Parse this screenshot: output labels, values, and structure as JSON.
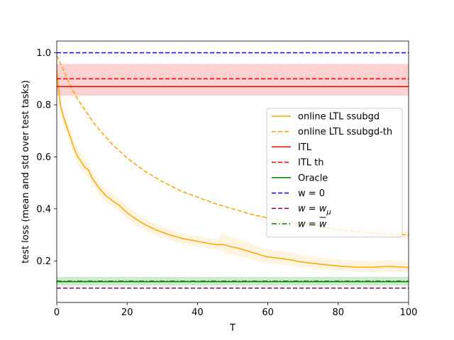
{
  "chart_data": {
    "type": "line",
    "title": "",
    "xlabel": "T",
    "ylabel": "test loss (mean and std over test tasks)",
    "xlim": [
      0,
      100
    ],
    "ylim": [
      0.04,
      1.045
    ],
    "xticks": [
      0,
      20,
      40,
      60,
      80,
      100
    ],
    "yticks": [
      0.2,
      0.4,
      0.6,
      0.8,
      1.0
    ],
    "xtick_labels": [
      "0",
      "20",
      "40",
      "60",
      "80",
      "100"
    ],
    "ytick_labels": [
      "0.2",
      "0.4",
      "0.6",
      "0.8",
      "1.0"
    ],
    "grid": false,
    "legend_position": "center-right",
    "colors": {
      "online": "#ffa500",
      "itl": "#ff0000",
      "oracle": "#008000",
      "zero": "#0000ff",
      "wmu": "#800080",
      "wbar": "#008000"
    },
    "series": [
      {
        "name": "online LTL ssubgd",
        "color": "#ffa500",
        "style": "solid",
        "x": [
          0,
          1,
          2,
          3,
          4,
          5,
          6,
          7,
          8,
          9,
          10,
          12,
          14,
          16,
          18,
          20,
          22,
          25,
          28,
          32,
          36,
          40,
          44,
          46,
          47,
          48,
          50,
          52,
          55,
          58,
          60,
          65,
          70,
          75,
          80,
          85,
          90,
          94,
          97,
          100
        ],
        "y": [
          0.93,
          0.8,
          0.75,
          0.71,
          0.67,
          0.63,
          0.6,
          0.58,
          0.56,
          0.55,
          0.52,
          0.48,
          0.45,
          0.43,
          0.41,
          0.385,
          0.365,
          0.34,
          0.32,
          0.3,
          0.285,
          0.275,
          0.265,
          0.262,
          0.263,
          0.26,
          0.253,
          0.247,
          0.235,
          0.222,
          0.215,
          0.207,
          0.195,
          0.187,
          0.18,
          0.176,
          0.176,
          0.178,
          0.177,
          0.175
        ],
        "std_lower": [
          0.89,
          0.77,
          0.72,
          0.68,
          0.64,
          0.6,
          0.57,
          0.55,
          0.535,
          0.52,
          0.495,
          0.455,
          0.425,
          0.405,
          0.385,
          0.36,
          0.34,
          0.318,
          0.298,
          0.28,
          0.265,
          0.255,
          0.247,
          0.243,
          0.235,
          0.228,
          0.222,
          0.216,
          0.207,
          0.196,
          0.19,
          0.183,
          0.174,
          0.167,
          0.162,
          0.158,
          0.157,
          0.158,
          0.157,
          0.156
        ],
        "std_upper": [
          0.97,
          0.83,
          0.78,
          0.74,
          0.7,
          0.66,
          0.63,
          0.61,
          0.59,
          0.58,
          0.545,
          0.505,
          0.475,
          0.455,
          0.435,
          0.41,
          0.39,
          0.362,
          0.342,
          0.322,
          0.305,
          0.295,
          0.285,
          0.283,
          0.312,
          0.3,
          0.29,
          0.282,
          0.268,
          0.252,
          0.245,
          0.235,
          0.221,
          0.212,
          0.205,
          0.2,
          0.199,
          0.203,
          0.2,
          0.198
        ]
      },
      {
        "name": "online LTL ssubgd-th",
        "color": "#ffa500",
        "style": "dashed",
        "x": [
          0,
          2,
          4,
          6,
          8,
          10,
          12,
          14,
          16,
          18,
          20,
          25,
          30,
          35,
          40,
          45,
          50,
          55,
          60,
          65,
          70,
          75,
          80,
          85,
          90,
          95,
          100
        ],
        "y": [
          0.99,
          0.93,
          0.87,
          0.82,
          0.78,
          0.74,
          0.705,
          0.675,
          0.645,
          0.62,
          0.595,
          0.545,
          0.505,
          0.47,
          0.445,
          0.42,
          0.4,
          0.38,
          0.365,
          0.35,
          0.34,
          0.33,
          0.32,
          0.312,
          0.306,
          0.302,
          0.3
        ],
        "std_lower": [
          0.99,
          0.93,
          0.87,
          0.82,
          0.78,
          0.74,
          0.705,
          0.675,
          0.645,
          0.62,
          0.595,
          0.545,
          0.505,
          0.47,
          0.445,
          0.42,
          0.4,
          0.38,
          0.36,
          0.342,
          0.33,
          0.318,
          0.305,
          0.297,
          0.292,
          0.288,
          0.285
        ],
        "std_upper": [
          0.99,
          0.93,
          0.87,
          0.82,
          0.78,
          0.74,
          0.705,
          0.675,
          0.645,
          0.62,
          0.595,
          0.545,
          0.505,
          0.47,
          0.445,
          0.42,
          0.4,
          0.38,
          0.368,
          0.356,
          0.35,
          0.343,
          0.335,
          0.327,
          0.32,
          0.316,
          0.313
        ]
      },
      {
        "name": "ITL",
        "color": "#ff0000",
        "style": "solid",
        "constant": 0.87,
        "std_lower": 0.835,
        "std_upper": 0.957
      },
      {
        "name": "ITL th",
        "color": "#ff0000",
        "style": "dashed",
        "constant": 0.9
      },
      {
        "name": "Oracle",
        "color": "#008000",
        "style": "solid",
        "constant": 0.12,
        "std_lower": 0.105,
        "std_upper": 0.138
      },
      {
        "name": "w = 0",
        "color": "#0000ff",
        "style": "dashed",
        "constant": 1.0
      },
      {
        "name": "w = w_μ",
        "color": "#800080",
        "style": "dashed",
        "constant": 0.095
      },
      {
        "name": "w = w̄",
        "color": "#008000",
        "style": "dashdot",
        "constant": 0.122
      }
    ],
    "legend_entries": [
      {
        "label": "online LTL ssubgd",
        "color": "#ffa500",
        "style": "solid",
        "math": false
      },
      {
        "label": "online LTL ssubgd-th",
        "color": "#ffa500",
        "style": "dashed",
        "math": false
      },
      {
        "label": "ITL",
        "color": "#ff0000",
        "style": "solid",
        "math": false
      },
      {
        "label": "ITL th",
        "color": "#ff0000",
        "style": "dashed",
        "math": false
      },
      {
        "label": "Oracle",
        "color": "#008000",
        "style": "solid",
        "math": false
      },
      {
        "label": "w = 0",
        "color": "#0000ff",
        "style": "dashed",
        "math": false
      },
      {
        "label": "w = w",
        "sub": "μ",
        "color": "#800080",
        "style": "dashed",
        "math": true
      },
      {
        "label": "w = w",
        "bar": true,
        "color": "#008000",
        "style": "dashdot",
        "math": true
      }
    ]
  }
}
